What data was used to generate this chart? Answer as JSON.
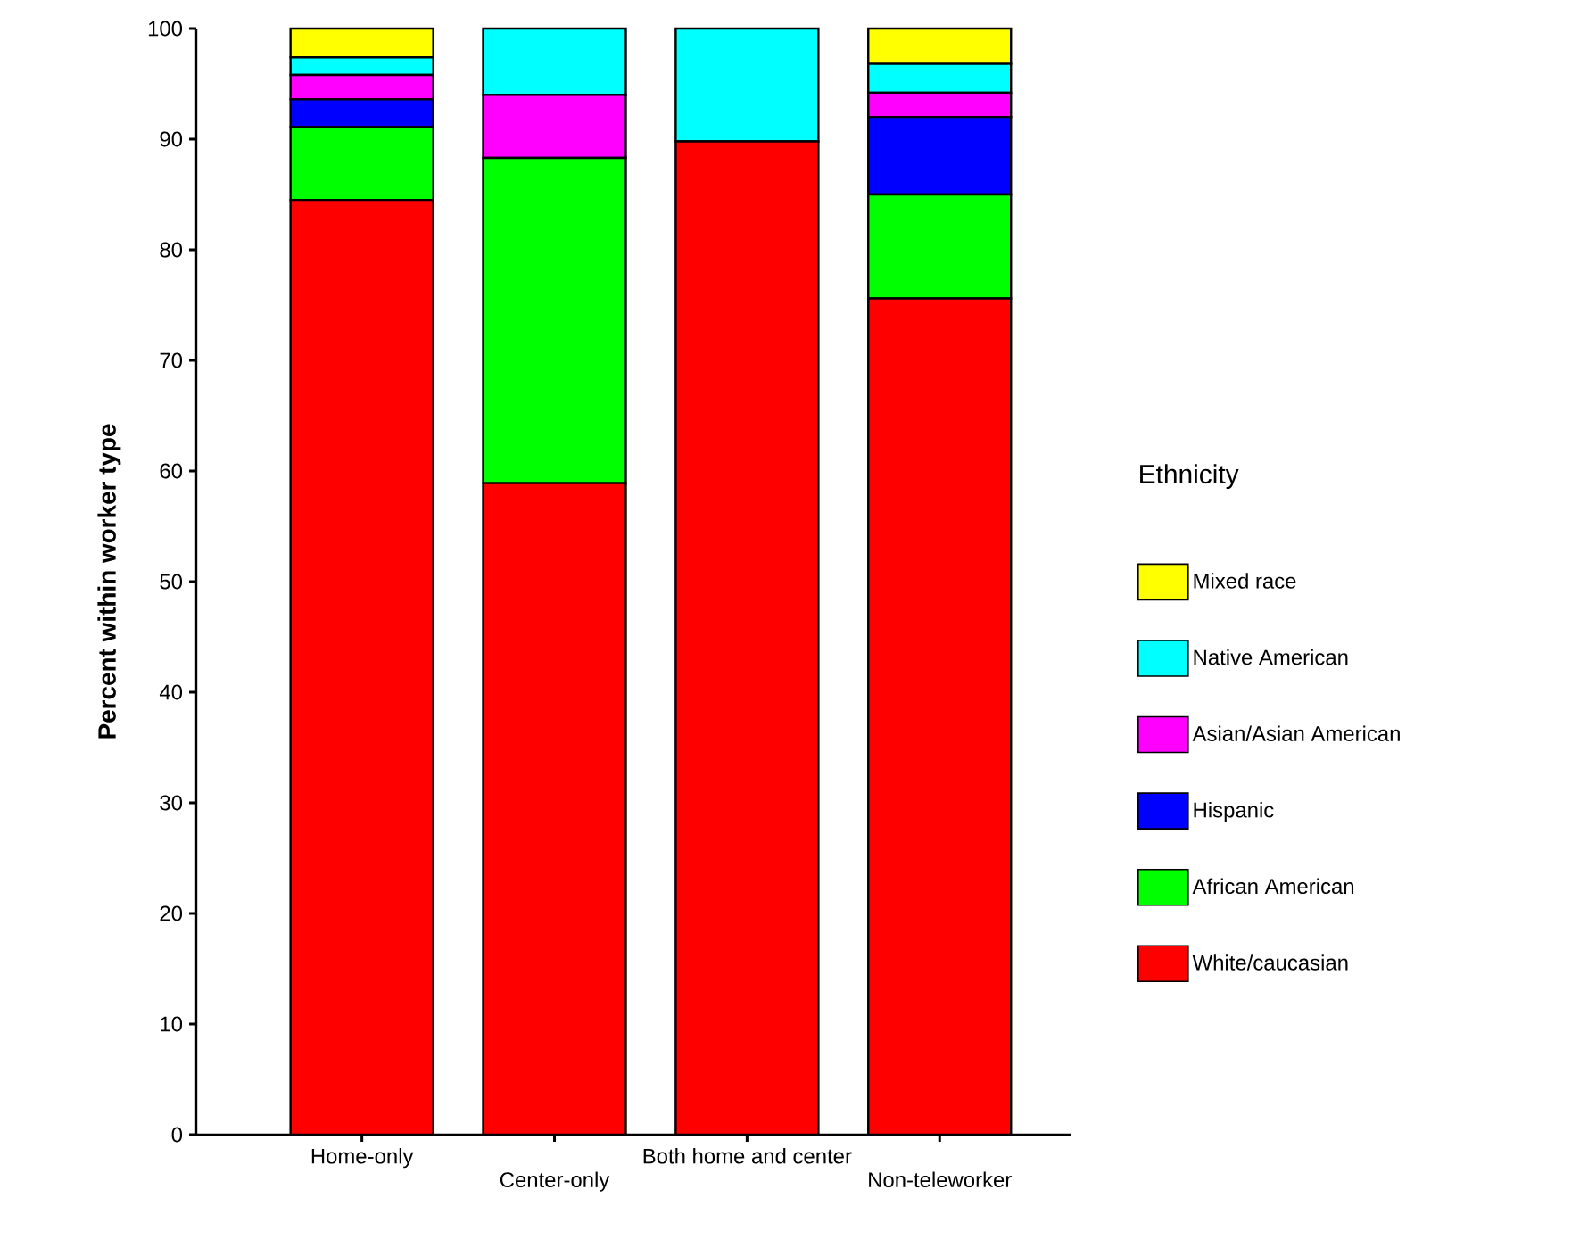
{
  "chart_data": {
    "type": "bar",
    "stacked": true,
    "ylabel": "Percent within worker type",
    "legend_title": "Ethnicity",
    "categories": [
      "Home-only",
      "Center-only",
      "Both home and center",
      "Non-teleworker"
    ],
    "series": [
      {
        "name": "White/caucasian",
        "color": "#ff0000",
        "values": [
          84.5,
          58.9,
          89.8,
          75.6
        ]
      },
      {
        "name": "African American",
        "color": "#00ff00",
        "values": [
          6.6,
          29.4,
          0,
          9.4
        ]
      },
      {
        "name": "Hispanic",
        "color": "#0000ff",
        "values": [
          2.5,
          0,
          0,
          7.0
        ]
      },
      {
        "name": "Asian/Asian American",
        "color": "#ff00ff",
        "values": [
          2.2,
          5.7,
          0,
          2.2
        ]
      },
      {
        "name": "Native American",
        "color": "#00ffff",
        "values": [
          1.6,
          6.0,
          10.2,
          2.6
        ]
      },
      {
        "name": "Mixed race",
        "color": "#ffff00",
        "values": [
          2.6,
          0,
          0,
          3.2
        ]
      }
    ],
    "ylim": [
      0,
      100
    ],
    "yticks": [
      0,
      10,
      20,
      30,
      40,
      50,
      60,
      70,
      80,
      90,
      100
    ],
    "grid": false,
    "legend": "right"
  }
}
